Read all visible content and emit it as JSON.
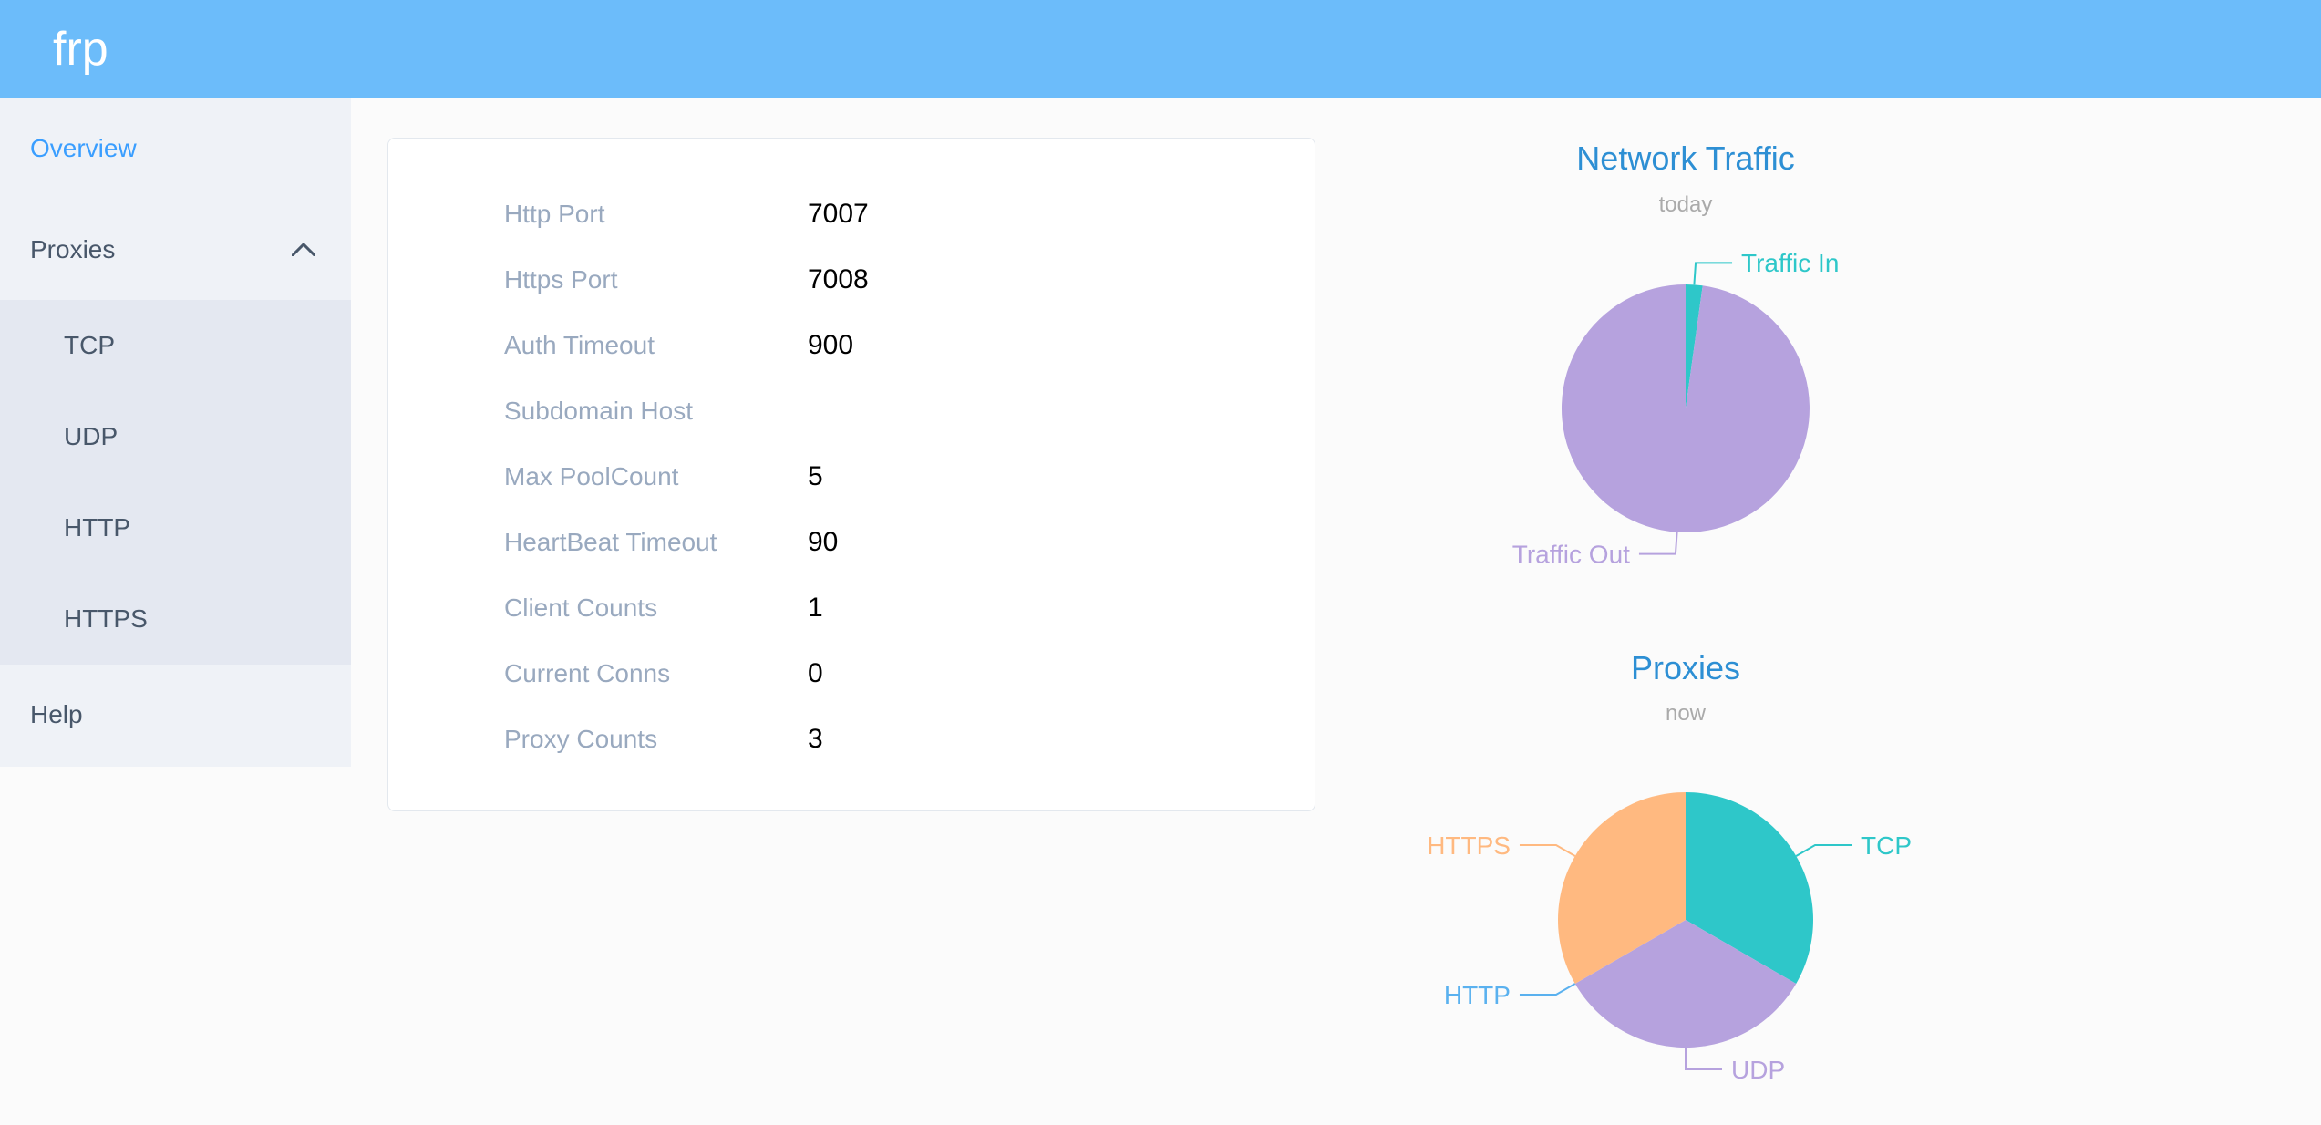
{
  "header": {
    "logo": "frp"
  },
  "sidebar": {
    "overview": "Overview",
    "proxies": "Proxies",
    "proxies_children": [
      "TCP",
      "UDP",
      "HTTP",
      "HTTPS"
    ],
    "help": "Help"
  },
  "overview_card": {
    "rows": [
      {
        "label": "Http Port",
        "value": "7007"
      },
      {
        "label": "Https Port",
        "value": "7008"
      },
      {
        "label": "Auth Timeout",
        "value": "900"
      },
      {
        "label": "Subdomain Host",
        "value": ""
      },
      {
        "label": "Max PoolCount",
        "value": "5"
      },
      {
        "label": "HeartBeat Timeout",
        "value": "90"
      },
      {
        "label": "Client Counts",
        "value": "1"
      },
      {
        "label": "Current Conns",
        "value": "0"
      },
      {
        "label": "Proxy Counts",
        "value": "3"
      }
    ]
  },
  "chart_data": [
    {
      "type": "pie",
      "title": "Network Traffic",
      "subtitle": "today",
      "start_angle": 0,
      "direction": "clockwise",
      "labels_position": "outside",
      "value_format": "percent-estimate",
      "slices": [
        {
          "label": "Traffic In",
          "value": 2.2,
          "color": "#2ec7c9"
        },
        {
          "label": "Traffic Out",
          "value": 97.8,
          "color": "#b6a2de"
        }
      ]
    },
    {
      "type": "pie",
      "title": "Proxies",
      "subtitle": "now",
      "start_angle": 0,
      "direction": "clockwise",
      "labels_position": "outside",
      "value_format": "count",
      "slices": [
        {
          "label": "TCP",
          "value": 1,
          "color": "#2ec7c9"
        },
        {
          "label": "UDP",
          "value": 1,
          "color": "#b6a2de"
        },
        {
          "label": "HTTP",
          "value": 0,
          "color": "#5ab1ef"
        },
        {
          "label": "HTTPS",
          "value": 1,
          "color": "#ffb980"
        }
      ]
    }
  ],
  "colors": {
    "header_bg": "#6cbcfa",
    "sidebar_bg": "#eff2f7",
    "submenu_bg": "#e4e8f1",
    "menu_text": "#48576a",
    "active_menu": "#3a9eff",
    "chart_title": "#2d8fd4",
    "subtitle": "#aaaaaa",
    "label_text": "#99a9bf",
    "value_text": "#000000",
    "card_bg": "#ffffff",
    "card_border": "#e3e8ee",
    "page_bg": "#fbfbfb",
    "logo_color": "#ffffff"
  }
}
